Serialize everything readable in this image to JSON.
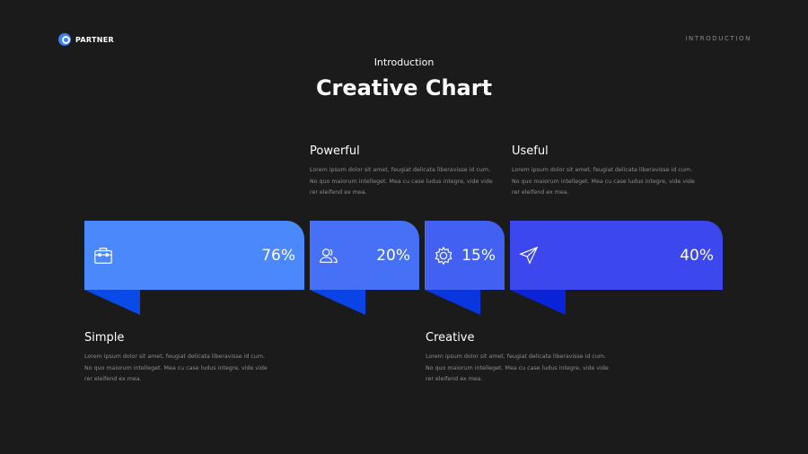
{
  "brand": {
    "name": "PARTNER"
  },
  "header": {
    "section": "INTRODUCTION",
    "subtitle": "Introduction",
    "title": "Creative Chart"
  },
  "colors": {
    "background": "#1b1b1b",
    "bar1": "#4a88fb",
    "bar2": "#4671f6",
    "bar3": "#4260f2",
    "bar4": "#3c48ee",
    "tab1": "#0a4ae8",
    "tab2": "#0a44e6",
    "tab3": "#0a36e0",
    "tab4": "#0a22d8"
  },
  "bars": [
    {
      "value": "76%",
      "icon": "briefcase-icon"
    },
    {
      "value": "20%",
      "icon": "users-icon"
    },
    {
      "value": "15%",
      "icon": "gear-icon"
    },
    {
      "value": "40%",
      "icon": "paper-plane-icon"
    }
  ],
  "items": [
    {
      "title": "Simple",
      "body": "Lorem ipsum dolor sit amet, feugiat delicata liberavisse id cum. No quo maiorum intelleget. Mea cu case ludus integre, vide vide rer eleifend ex mea."
    },
    {
      "title": "Powerful",
      "body": "Lorem ipsum dolor sit amet, feugiat delicata liberavisse id cum. No quo maiorum intelleget. Mea cu case ludus integre, vide vide rer eleifend ex mea."
    },
    {
      "title": "Creative",
      "body": "Lorem ipsum dolor sit amet, feugiat delicata liberavisse id cum. No quo maiorum intelleget. Mea cu case ludus integre, vide vide rer eleifend ex mea."
    },
    {
      "title": "Useful",
      "body": "Lorem ipsum dolor sit amet, feugiat delicata liberavisse id cum. No quo maiorum intelleget. Mea cu case ludus integre, vide vide rer eleifend ex mea."
    }
  ]
}
